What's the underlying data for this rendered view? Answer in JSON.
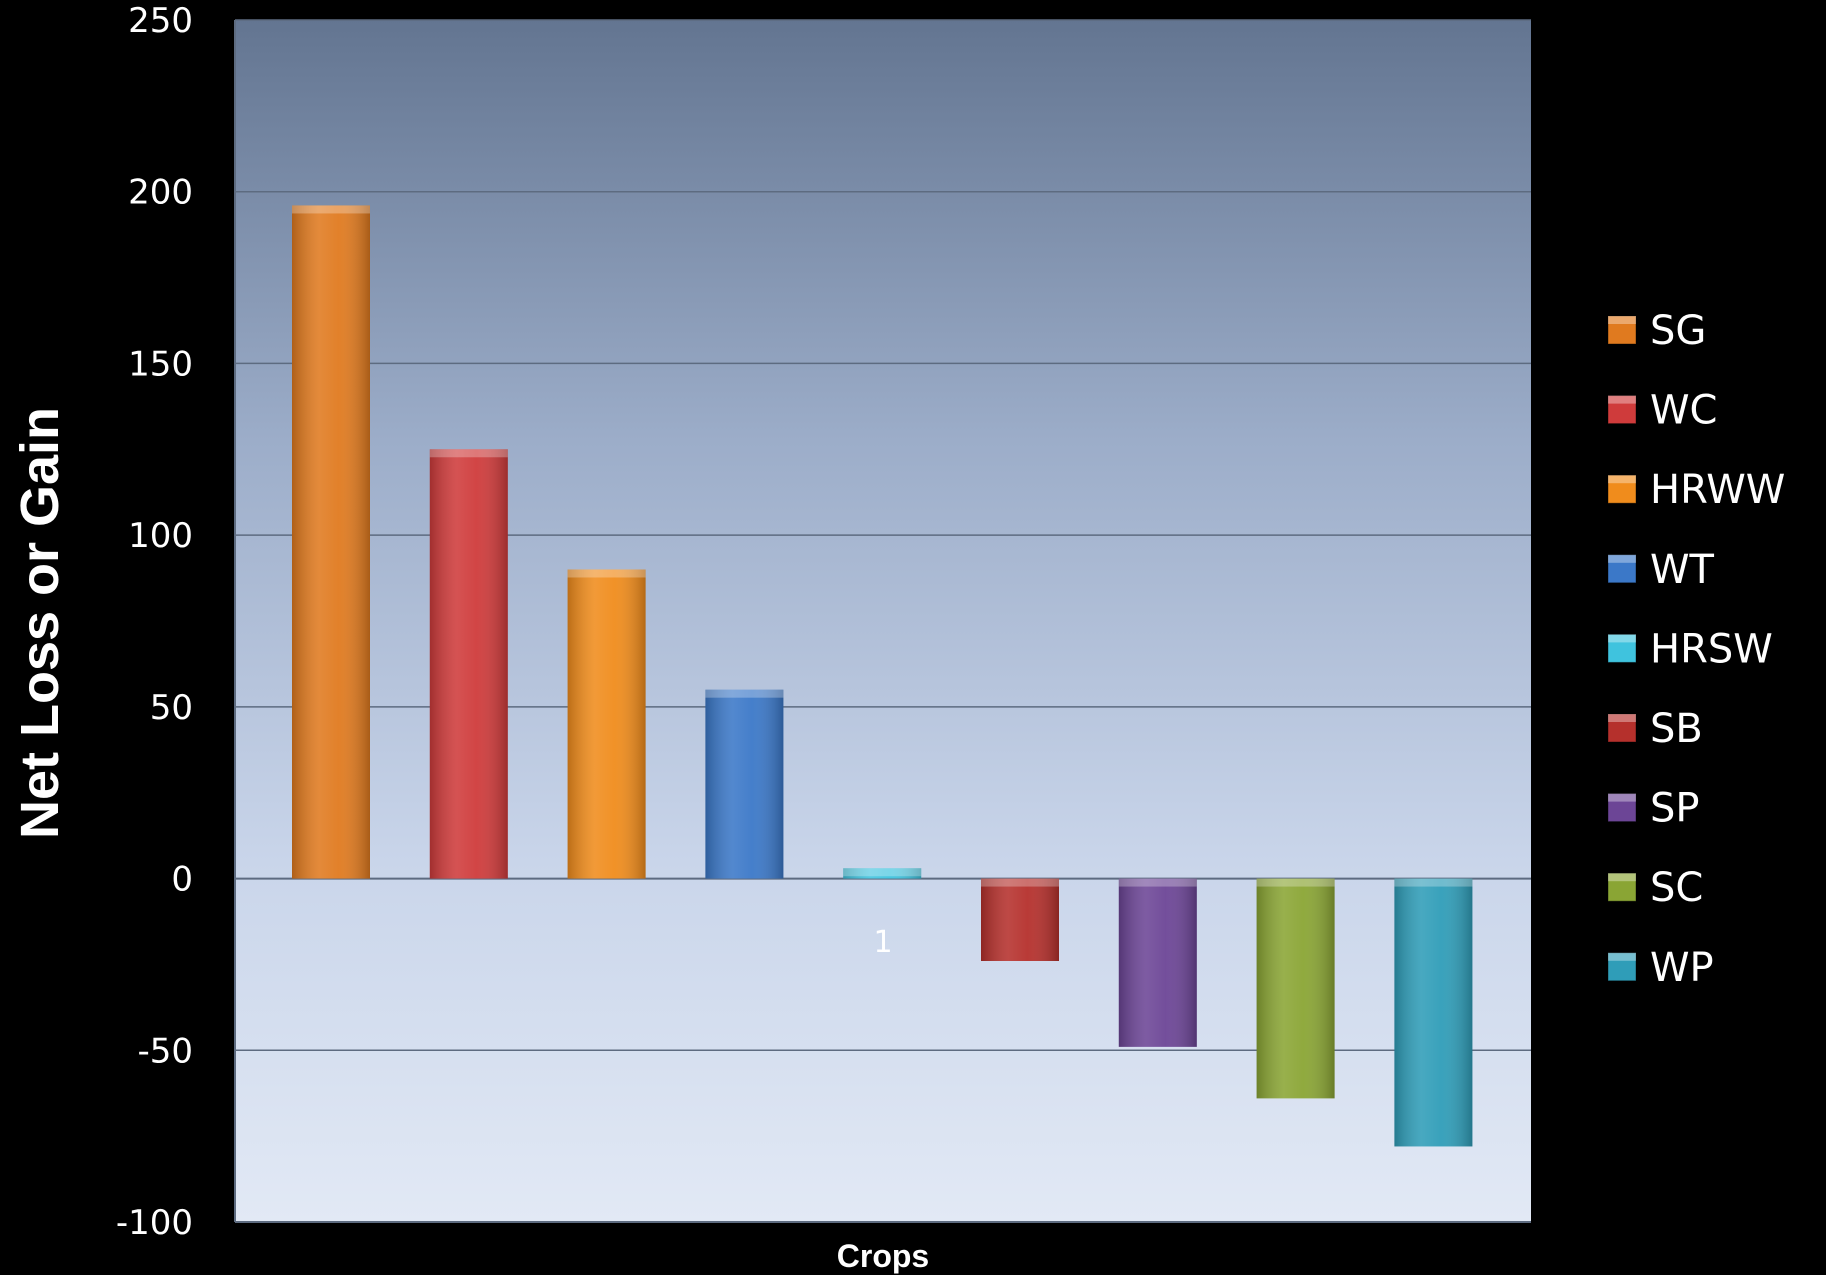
{
  "chart_data": {
    "type": "bar",
    "title": "",
    "xlabel": "Crops",
    "ylabel": "Net Loss or Gain",
    "category_label": "1",
    "ylim": [
      -100,
      250
    ],
    "yticks": [
      -100,
      -50,
      0,
      50,
      100,
      150,
      200,
      250
    ],
    "grid": true,
    "legend_position": "right",
    "series": [
      {
        "name": "SG",
        "value": 196,
        "color": "#e07a1f"
      },
      {
        "name": "WC",
        "value": 125,
        "color": "#cf3b3b"
      },
      {
        "name": "HRWW",
        "value": 90,
        "color": "#f08c1c"
      },
      {
        "name": "WT",
        "value": 55,
        "color": "#3b78c8"
      },
      {
        "name": "HRSW",
        "value": 3,
        "color": "#3fc3de"
      },
      {
        "name": "SB",
        "value": -24,
        "color": "#b5302c"
      },
      {
        "name": "SP",
        "value": -49,
        "color": "#6c4596"
      },
      {
        "name": "SC",
        "value": -64,
        "color": "#8aa534"
      },
      {
        "name": "WP",
        "value": -78,
        "color": "#2f9db8"
      }
    ]
  }
}
